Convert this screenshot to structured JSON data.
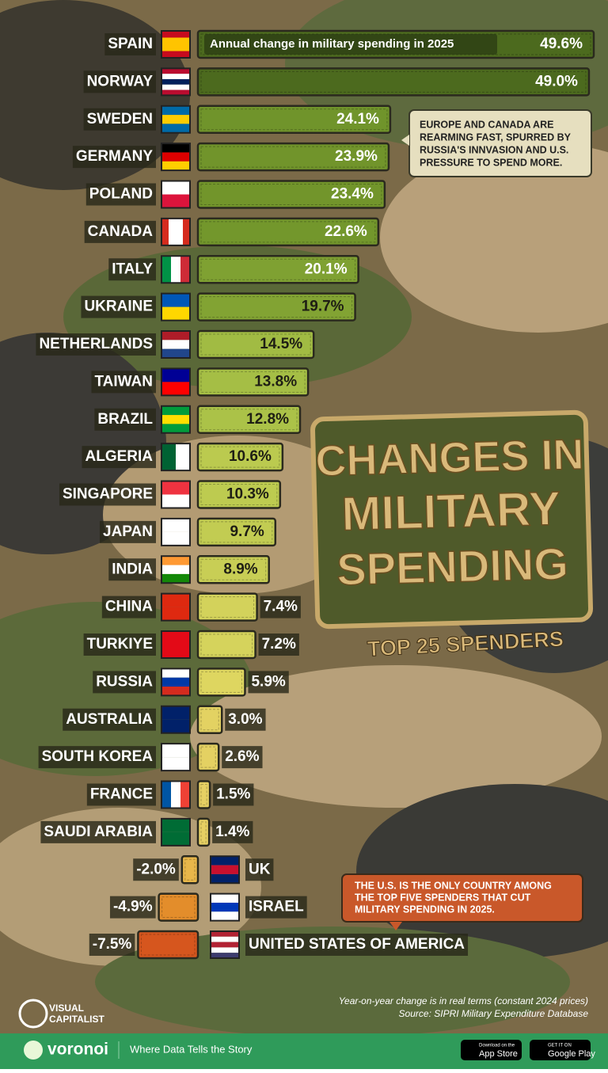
{
  "chart_data": {
    "type": "bar",
    "orientation": "horizontal",
    "title_lines": [
      "CHANGES IN",
      "MILITARY",
      "SPENDING"
    ],
    "subtitle": "TOP 25 SPENDERS",
    "bar_annotation": "Annual change in military spending in 2025",
    "categories": [
      "SPAIN",
      "NORWAY",
      "SWEDEN",
      "GERMANY",
      "POLAND",
      "CANADA",
      "ITALY",
      "UKRAINE",
      "NETHERLANDS",
      "TAIWAN",
      "BRAZIL",
      "ALGERIA",
      "SINGAPORE",
      "JAPAN",
      "INDIA",
      "CHINA",
      "TURKIYE",
      "RUSSIA",
      "AUSTRALIA",
      "SOUTH KOREA",
      "FRANCE",
      "SAUDI ARABIA",
      "UK",
      "ISRAEL",
      "UNITED STATES OF AMERICA"
    ],
    "values": [
      49.6,
      49.0,
      24.1,
      23.9,
      23.4,
      22.6,
      20.1,
      19.7,
      14.5,
      13.8,
      12.8,
      10.6,
      10.3,
      9.7,
      8.9,
      7.4,
      7.2,
      5.9,
      3.0,
      2.6,
      1.5,
      1.4,
      -2.0,
      -4.9,
      -7.5
    ],
    "value_labels": [
      "49.6%",
      "49.0%",
      "24.1%",
      "23.9%",
      "23.4%",
      "22.6%",
      "20.1%",
      "19.7%",
      "14.5%",
      "13.8%",
      "12.8%",
      "10.6%",
      "10.3%",
      "9.7%",
      "8.9%",
      "7.4%",
      "7.2%",
      "5.9%",
      "3.0%",
      "2.6%",
      "1.5%",
      "1.4%",
      "-2.0%",
      "-4.9%",
      "-7.5%"
    ],
    "callouts": [
      [
        "EUROPE AND CANADA ARE",
        "REARMING FAST, SPURRED BY",
        "RUSSIA'S INNVASION AND U.S.",
        "PRESSURE TO SPEND MORE."
      ],
      [
        "THE U.S. IS THE ONLY COUNTRY AMONG",
        "THE TOP FIVE SPENDERS THAT CUT",
        "MILITARY SPENDING IN 2025."
      ]
    ],
    "note": "Year-on-year change is in real terms (constant 2024 prices)",
    "source": "Source: SIPRI Military Expenditure Database"
  },
  "branding": {
    "publisher": [
      "VISUAL",
      "CAPITALIST"
    ],
    "platform": "voronoi",
    "tagline": "Where Data Tells the Story",
    "app_store": [
      "Download on the",
      "App Store"
    ],
    "google_play": [
      "GET IT ON",
      "Google Play"
    ]
  }
}
